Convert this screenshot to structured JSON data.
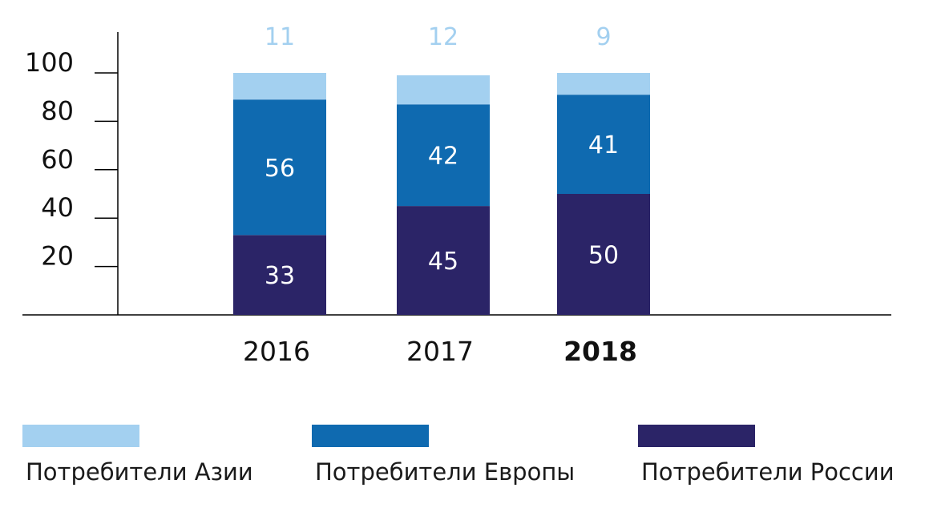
{
  "chart_data": {
    "type": "bar",
    "stacked": true,
    "categories": [
      "2016",
      "2017",
      "2018"
    ],
    "highlight_category": "2018",
    "series": [
      {
        "name": "Потребители России",
        "color": "#2b2467",
        "values": [
          33,
          45,
          50
        ]
      },
      {
        "name": "Потребители Европы",
        "color": "#0f6ab0",
        "values": [
          56,
          42,
          41
        ]
      },
      {
        "name": "Потребители Азии",
        "color": "#a3d0f0",
        "values": [
          11,
          12,
          9
        ]
      }
    ],
    "yticks": [
      "20",
      "40",
      "60",
      "80",
      "100"
    ],
    "ylim": [
      0,
      115
    ],
    "title": "",
    "xlabel": "",
    "ylabel": "",
    "legend_position": "bottom"
  },
  "legend": [
    {
      "label": "Потребители Азии",
      "color": "#a3d0f0"
    },
    {
      "label": "Потребители Европы",
      "color": "#0f6ab0"
    },
    {
      "label": "Потребители России",
      "color": "#2b2467"
    }
  ]
}
